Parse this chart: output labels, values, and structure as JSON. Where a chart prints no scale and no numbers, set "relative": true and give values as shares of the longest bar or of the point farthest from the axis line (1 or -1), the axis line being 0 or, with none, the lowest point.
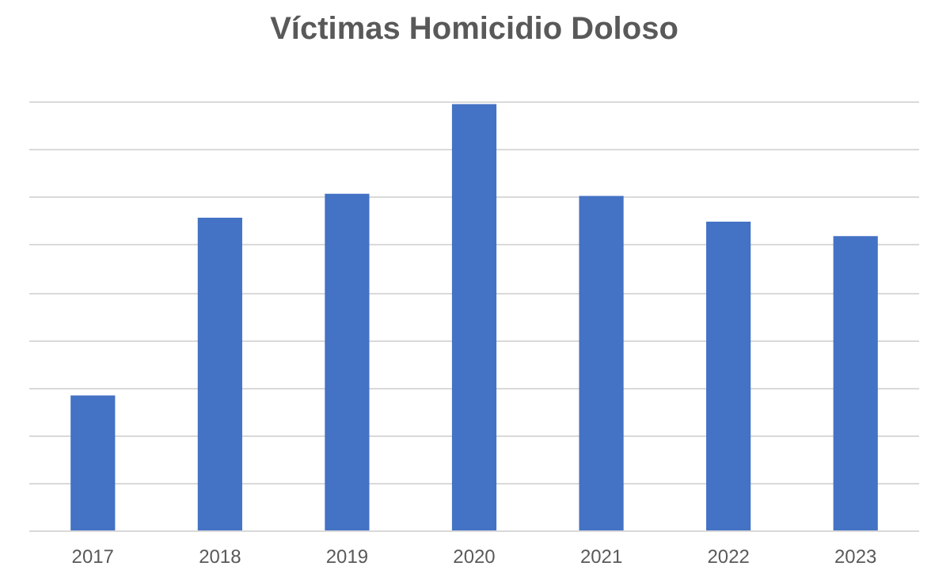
{
  "chart_data": {
    "type": "bar",
    "title": "Víctimas Homicidio Doloso",
    "categories": [
      "2017",
      "2018",
      "2019",
      "2020",
      "2021",
      "2022",
      "2023"
    ],
    "values": [
      0.318,
      0.734,
      0.79,
      1,
      0.785,
      0.725,
      0.691
    ],
    "color": "#4472c4",
    "relative": true,
    "grid": "y"
  }
}
